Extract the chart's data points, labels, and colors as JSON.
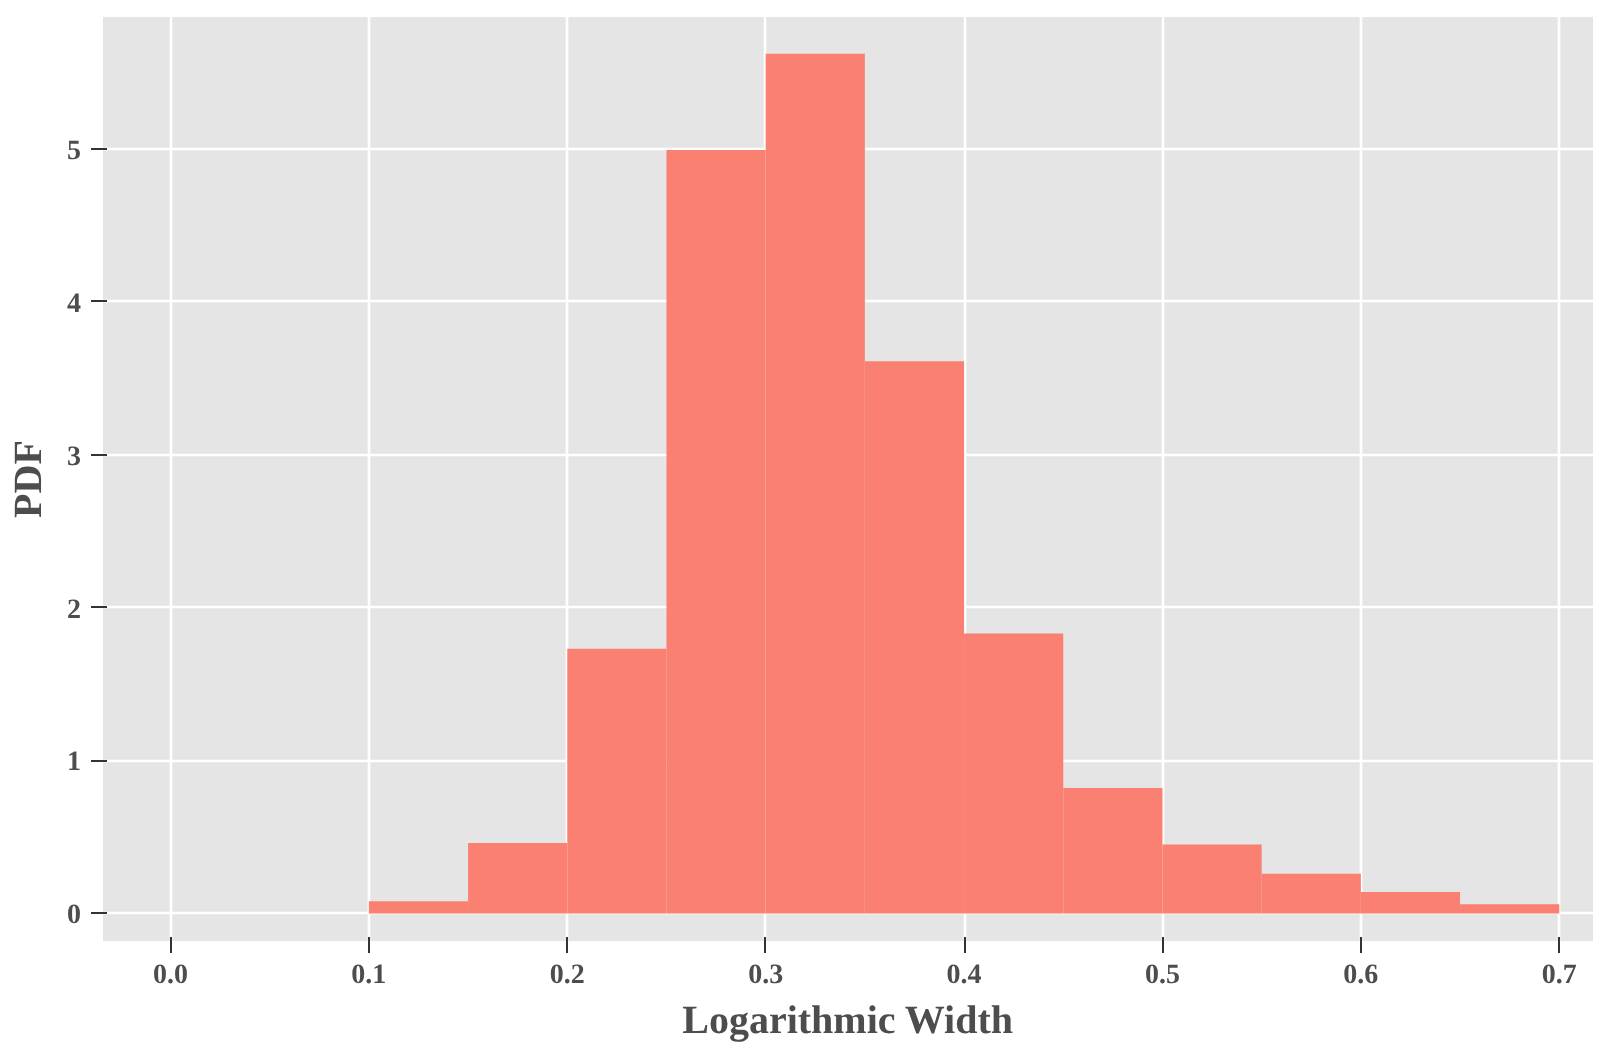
{
  "chart_data": {
    "type": "histogram",
    "xlabel": "Logarithmic Width",
    "ylabel": "PDF",
    "bins": [
      0.1,
      0.15,
      0.2,
      0.25,
      0.3,
      0.35,
      0.4,
      0.45,
      0.5,
      0.55,
      0.6,
      0.65,
      0.7
    ],
    "values": [
      0.08,
      0.46,
      1.73,
      4.99,
      5.62,
      3.61,
      1.83,
      0.82,
      0.45,
      0.26,
      0.14,
      0.06
    ],
    "color": "#fa8072",
    "xlim": [
      -0.034,
      0.717
    ],
    "ylim": [
      -0.18,
      5.86
    ],
    "xticks": [
      {
        "value": 0,
        "label": "0.0"
      },
      0.1,
      0.2,
      0.3,
      0.4,
      0.5,
      0.6,
      0.7
    ],
    "yticks": [
      0,
      1,
      2,
      3,
      4,
      5
    ],
    "grid": true
  }
}
